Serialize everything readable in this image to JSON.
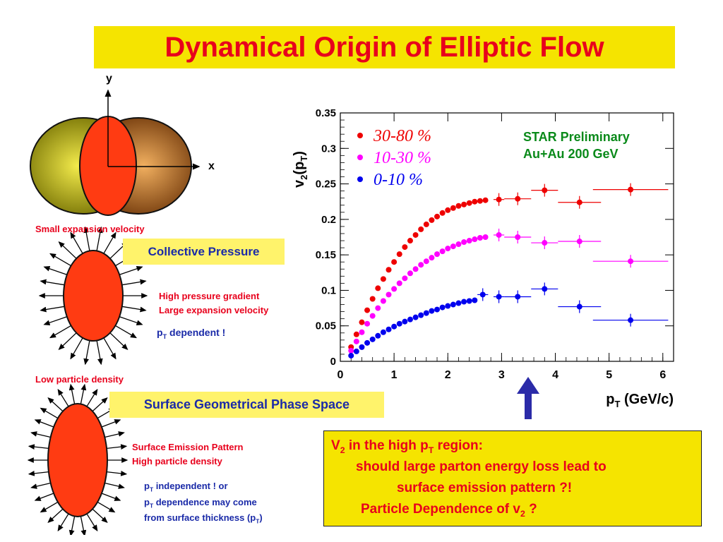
{
  "title": "Dynamical Origin of Elliptic Flow",
  "axis_labels": {
    "y": "y",
    "x": "x"
  },
  "small_expansion": "Small expansion velocity",
  "collective_pressure": "Collective Pressure",
  "high_pressure": "High pressure gradient",
  "large_expansion": "Large expansion velocity",
  "pt_dependent_prefix": "p",
  "pt_dependent_suffix": " dependent !",
  "low_density": "Low particle density",
  "surface_geometrical": "Surface Geometrical Phase Space",
  "surface_emission": "Surface Emission Pattern",
  "high_density": "High particle density",
  "indep_line1_suffix": " independent ! or",
  "indep_line2_suffix": " dependence may come",
  "indep_line3": "from surface thickness (p",
  "sub_T": "T",
  "star_line1": "STAR Preliminary",
  "star_line2": "Au+Au 200 GeV",
  "note": {
    "line1_a": "V",
    "line1_sub": "2",
    "line1_b": " in the high p",
    "line1_c": " region:",
    "line2": "should large parton energy loss lead to",
    "line3": "surface emission pattern ?!",
    "line4_a": "Particle Dependence of v",
    "line4_b": " ?"
  },
  "colors": {
    "accent_red": "#e8001c",
    "title_bg": "#f5e400",
    "blue": "#1a2aa8",
    "magenta": "#ff00ff",
    "chart_blue": "#0000ee"
  },
  "chart_data": {
    "type": "scatter",
    "title": "",
    "xlabel": "p_T (GeV/c)",
    "ylabel": "v_2(p_T)",
    "xlim": [
      0,
      6.2
    ],
    "ylim": [
      0,
      0.35
    ],
    "xticks": [
      "0",
      "1",
      "2",
      "3",
      "4",
      "5",
      "6"
    ],
    "yticks": [
      "0",
      "0.05",
      "0.1",
      "0.15",
      "0.2",
      "0.25",
      "0.3",
      "0.35"
    ],
    "grid": false,
    "legend_position": "top-left",
    "series": [
      {
        "name": "30-80 %",
        "color": "#ee0000",
        "x": [
          0.2,
          0.3,
          0.4,
          0.5,
          0.6,
          0.7,
          0.8,
          0.9,
          1.0,
          1.1,
          1.2,
          1.3,
          1.4,
          1.5,
          1.6,
          1.7,
          1.8,
          1.9,
          2.0,
          2.1,
          2.2,
          2.3,
          2.4,
          2.5,
          2.6,
          2.7,
          2.95,
          3.3,
          3.8,
          4.45,
          5.4
        ],
        "y": [
          0.02,
          0.038,
          0.055,
          0.072,
          0.088,
          0.103,
          0.116,
          0.129,
          0.14,
          0.151,
          0.161,
          0.17,
          0.178,
          0.186,
          0.193,
          0.199,
          0.204,
          0.209,
          0.213,
          0.216,
          0.219,
          0.221,
          0.223,
          0.225,
          0.226,
          0.227,
          0.228,
          0.229,
          0.241,
          0.224,
          0.242
        ],
        "xerr": [
          0,
          0,
          0,
          0,
          0,
          0,
          0,
          0,
          0,
          0,
          0,
          0,
          0,
          0,
          0,
          0,
          0,
          0,
          0,
          0,
          0,
          0,
          0,
          0,
          0,
          0,
          0.1,
          0.25,
          0.25,
          0.4,
          0.7
        ]
      },
      {
        "name": "10-30 %",
        "color": "#ff00ff",
        "x": [
          0.2,
          0.3,
          0.4,
          0.5,
          0.6,
          0.7,
          0.8,
          0.9,
          1.0,
          1.1,
          1.2,
          1.3,
          1.4,
          1.5,
          1.6,
          1.7,
          1.8,
          1.9,
          2.0,
          2.1,
          2.2,
          2.3,
          2.4,
          2.5,
          2.6,
          2.7,
          2.95,
          3.3,
          3.8,
          4.45,
          5.4
        ],
        "y": [
          0.015,
          0.028,
          0.041,
          0.053,
          0.064,
          0.075,
          0.085,
          0.094,
          0.102,
          0.11,
          0.117,
          0.124,
          0.13,
          0.136,
          0.141,
          0.146,
          0.151,
          0.155,
          0.159,
          0.162,
          0.165,
          0.168,
          0.17,
          0.172,
          0.174,
          0.175,
          0.178,
          0.175,
          0.167,
          0.169,
          0.141
        ],
        "xerr": [
          0,
          0,
          0,
          0,
          0,
          0,
          0,
          0,
          0,
          0,
          0,
          0,
          0,
          0,
          0,
          0,
          0,
          0,
          0,
          0,
          0,
          0,
          0,
          0,
          0,
          0,
          0.1,
          0.25,
          0.25,
          0.4,
          0.7
        ]
      },
      {
        "name": "0-10 %",
        "color": "#0000ee",
        "x": [
          0.2,
          0.3,
          0.4,
          0.5,
          0.6,
          0.7,
          0.8,
          0.9,
          1.0,
          1.1,
          1.2,
          1.3,
          1.4,
          1.5,
          1.6,
          1.7,
          1.8,
          1.9,
          2.0,
          2.1,
          2.2,
          2.3,
          2.4,
          2.5,
          2.65,
          2.95,
          3.3,
          3.8,
          4.45,
          5.4
        ],
        "y": [
          0.008,
          0.014,
          0.02,
          0.026,
          0.031,
          0.036,
          0.041,
          0.045,
          0.049,
          0.053,
          0.056,
          0.059,
          0.062,
          0.065,
          0.068,
          0.071,
          0.073,
          0.076,
          0.078,
          0.08,
          0.082,
          0.084,
          0.085,
          0.086,
          0.094,
          0.091,
          0.091,
          0.102,
          0.077,
          0.058
        ],
        "xerr": [
          0,
          0,
          0,
          0,
          0,
          0,
          0,
          0,
          0,
          0,
          0,
          0,
          0,
          0,
          0,
          0,
          0,
          0,
          0,
          0,
          0,
          0,
          0,
          0,
          0.1,
          0.1,
          0.25,
          0.25,
          0.4,
          0.7
        ]
      }
    ]
  }
}
